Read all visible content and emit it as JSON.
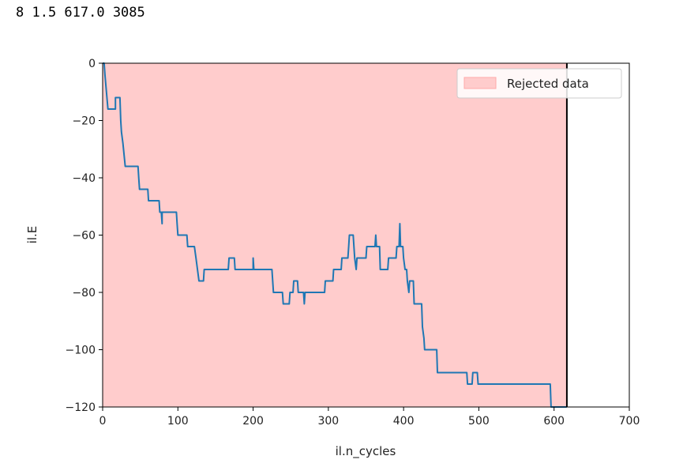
{
  "output_text": "8 1.5 617.0 3085",
  "chart_data": {
    "type": "line",
    "title": "",
    "xlabel": "il.n_cycles",
    "ylabel": "il.E",
    "xlim": [
      0,
      700
    ],
    "ylim": [
      -120,
      0
    ],
    "xticks": [
      0,
      100,
      200,
      300,
      400,
      500,
      600,
      700
    ],
    "yticks": [
      0,
      -20,
      -40,
      -60,
      -80,
      -100,
      -120
    ],
    "grid": false,
    "legend": {
      "placement": "top-right",
      "entries": [
        {
          "label": "Rejected data",
          "color": "#ffcccc"
        }
      ]
    },
    "span": {
      "label": "Rejected data",
      "x0": 0,
      "x1": 617,
      "color": "#ffcccc"
    },
    "vline": {
      "x": 617,
      "color": "#000000"
    },
    "series": [
      {
        "name": "il.E",
        "color": "#1f77b4",
        "points": [
          [
            0,
            0
          ],
          [
            2,
            0
          ],
          [
            3,
            -4
          ],
          [
            7,
            -16
          ],
          [
            17,
            -16
          ],
          [
            17,
            -12
          ],
          [
            23,
            -12
          ],
          [
            24,
            -20
          ],
          [
            25,
            -24
          ],
          [
            27,
            -28
          ],
          [
            30,
            -36
          ],
          [
            47,
            -36
          ],
          [
            48,
            -40
          ],
          [
            49,
            -44
          ],
          [
            60,
            -44
          ],
          [
            61,
            -48
          ],
          [
            75,
            -48
          ],
          [
            76,
            -52
          ],
          [
            78,
            -52
          ],
          [
            79,
            -56
          ],
          [
            79,
            -52
          ],
          [
            98,
            -52
          ],
          [
            99,
            -56
          ],
          [
            100,
            -60
          ],
          [
            112,
            -60
          ],
          [
            113,
            -64
          ],
          [
            122,
            -64
          ],
          [
            124,
            -68
          ],
          [
            128,
            -76
          ],
          [
            134,
            -76
          ],
          [
            135,
            -72
          ],
          [
            167,
            -72
          ],
          [
            168,
            -68
          ],
          [
            175,
            -68
          ],
          [
            176,
            -72
          ],
          [
            200,
            -72
          ],
          [
            200,
            -68
          ],
          [
            201,
            -72
          ],
          [
            225,
            -72
          ],
          [
            227,
            -80
          ],
          [
            239,
            -80
          ],
          [
            240,
            -84
          ],
          [
            248,
            -84
          ],
          [
            249,
            -80
          ],
          [
            253,
            -80
          ],
          [
            254,
            -76
          ],
          [
            259,
            -76
          ],
          [
            260,
            -80
          ],
          [
            267,
            -80
          ],
          [
            268,
            -84
          ],
          [
            269,
            -80
          ],
          [
            295,
            -80
          ],
          [
            296,
            -76
          ],
          [
            306,
            -76
          ],
          [
            307,
            -72
          ],
          [
            317,
            -72
          ],
          [
            318,
            -68
          ],
          [
            326,
            -68
          ],
          [
            327,
            -64
          ],
          [
            328,
            -60
          ],
          [
            333,
            -60
          ],
          [
            335,
            -68
          ],
          [
            337,
            -72
          ],
          [
            338,
            -68
          ],
          [
            350,
            -68
          ],
          [
            351,
            -64
          ],
          [
            362,
            -64
          ],
          [
            363,
            -60
          ],
          [
            364,
            -64
          ],
          [
            368,
            -64
          ],
          [
            369,
            -72
          ],
          [
            379,
            -72
          ],
          [
            380,
            -68
          ],
          [
            390,
            -68
          ],
          [
            391,
            -64
          ],
          [
            394,
            -64
          ],
          [
            395,
            -56
          ],
          [
            396,
            -64
          ],
          [
            399,
            -64
          ],
          [
            400,
            -68
          ],
          [
            402,
            -72
          ],
          [
            404,
            -72
          ],
          [
            405,
            -76
          ],
          [
            407,
            -80
          ],
          [
            408,
            -76
          ],
          [
            413,
            -76
          ],
          [
            414,
            -84
          ],
          [
            424,
            -84
          ],
          [
            425,
            -92
          ],
          [
            427,
            -96
          ],
          [
            428,
            -100
          ],
          [
            444,
            -100
          ],
          [
            445,
            -108
          ],
          [
            484,
            -108
          ],
          [
            485,
            -112
          ],
          [
            491,
            -112
          ],
          [
            492,
            -108
          ],
          [
            498,
            -108
          ],
          [
            499,
            -112
          ],
          [
            595,
            -112
          ],
          [
            596,
            -120
          ],
          [
            617,
            -120
          ]
        ]
      }
    ]
  }
}
